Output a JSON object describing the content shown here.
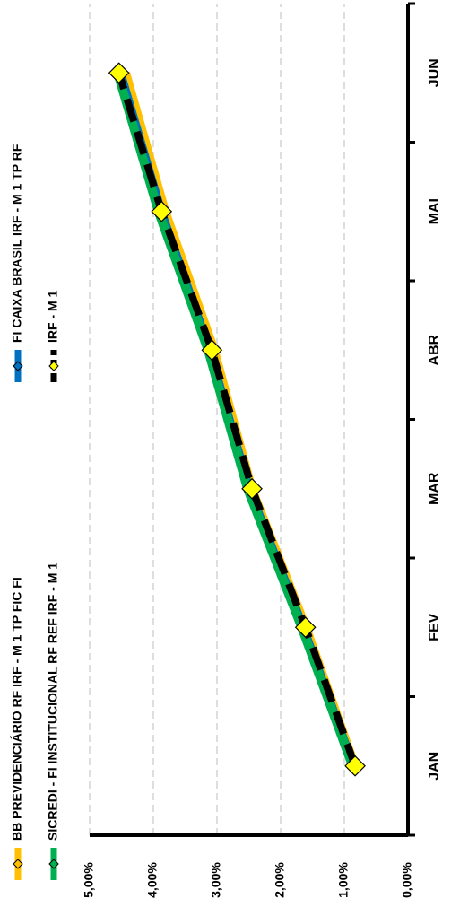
{
  "chart_data": {
    "type": "line",
    "categories": [
      "JAN",
      "FEV",
      "MAR",
      "ABR",
      "MAI",
      "JUN"
    ],
    "series": [
      {
        "name": "BB PREVIDENCIÁRIO RF IRF - M 1 TP FIC FI",
        "color": "#FFC000",
        "values": [
          0.85,
          1.62,
          2.47,
          3.06,
          3.83,
          4.45
        ]
      },
      {
        "name": "FI CAIXA BRASIL IRF - M 1 TP RF",
        "color": "#0070C0",
        "values": [
          0.86,
          1.65,
          2.5,
          3.12,
          3.88,
          4.52
        ]
      },
      {
        "name": "SICREDI - FI INSTITUCIONAL RF REF IRF - M 1",
        "color": "#00B050",
        "values": [
          0.87,
          1.67,
          2.52,
          3.14,
          3.92,
          4.56
        ]
      },
      {
        "name": "IRF - M 1",
        "color": "#000000",
        "dash": true,
        "marker_color": "#FFFF00",
        "values": [
          0.83,
          1.61,
          2.45,
          3.08,
          3.87,
          4.54
        ]
      }
    ],
    "ylim": [
      0,
      5
    ],
    "yticks": [
      {
        "value": 0,
        "label": "0,00%"
      },
      {
        "value": 1,
        "label": "1,00%"
      },
      {
        "value": 2,
        "label": "2,00%"
      },
      {
        "value": 3,
        "label": "3,00%"
      },
      {
        "value": 4,
        "label": "4,00%"
      },
      {
        "value": 5,
        "label": "5,00%"
      }
    ],
    "grid": true
  }
}
